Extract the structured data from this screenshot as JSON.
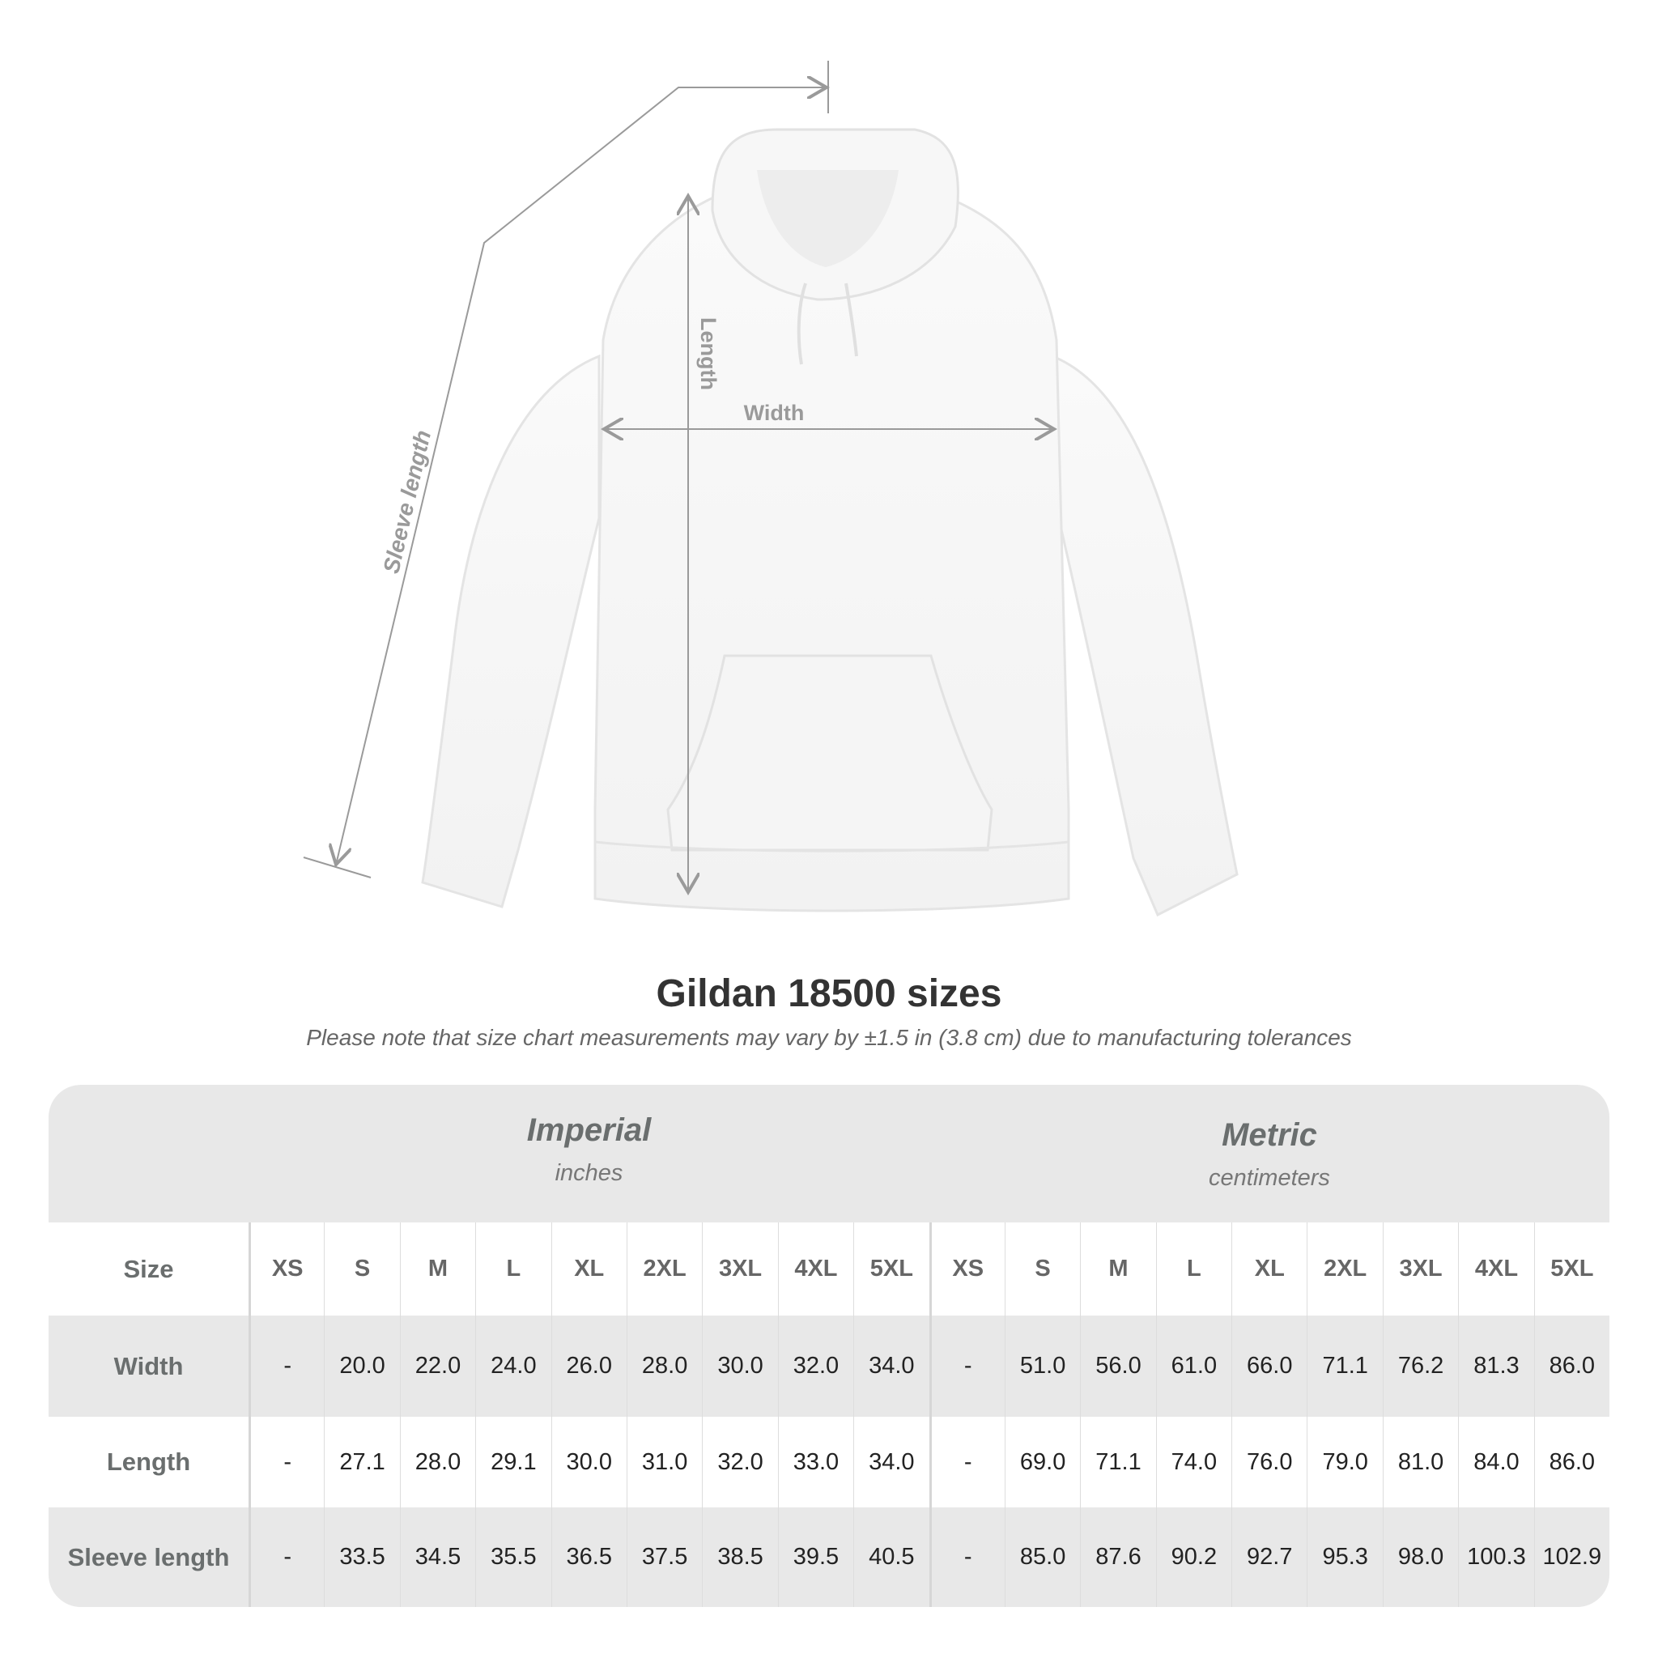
{
  "diagram": {
    "labels": {
      "length": "Length",
      "width": "Width",
      "sleeve": "Sleeve length"
    },
    "line_color": "#9a9a9a"
  },
  "title": "Gildan 18500 sizes",
  "subtitle": "Please note that size chart measurements may vary by ±1.5 in (3.8 cm) due to manufacturing tolerances",
  "table": {
    "imperial": {
      "name": "Imperial",
      "unit": "inches"
    },
    "metric": {
      "name": "Metric",
      "unit": "centimeters"
    },
    "size_label": "Size",
    "sizes": [
      "XS",
      "S",
      "M",
      "L",
      "XL",
      "2XL",
      "3XL",
      "4XL",
      "5XL"
    ],
    "rows": [
      {
        "label": "Width",
        "imperial": [
          "-",
          "20.0",
          "22.0",
          "24.0",
          "26.0",
          "28.0",
          "30.0",
          "32.0",
          "34.0"
        ],
        "metric": [
          "-",
          "51.0",
          "56.0",
          "61.0",
          "66.0",
          "71.1",
          "76.2",
          "81.3",
          "86.0"
        ]
      },
      {
        "label": "Length",
        "imperial": [
          "-",
          "27.1",
          "28.0",
          "29.1",
          "30.0",
          "31.0",
          "32.0",
          "33.0",
          "34.0"
        ],
        "metric": [
          "-",
          "69.0",
          "71.1",
          "74.0",
          "76.0",
          "79.0",
          "81.0",
          "84.0",
          "86.0"
        ]
      },
      {
        "label": "Sleeve length",
        "imperial": [
          "-",
          "33.5",
          "34.5",
          "35.5",
          "36.5",
          "37.5",
          "38.5",
          "39.5",
          "40.5"
        ],
        "metric": [
          "-",
          "85.0",
          "87.6",
          "90.2",
          "92.7",
          "95.3",
          "98.0",
          "100.3",
          "102.9"
        ]
      }
    ],
    "colors": {
      "band": "#e8e8e8",
      "label_text": "#6a6e6e"
    }
  }
}
